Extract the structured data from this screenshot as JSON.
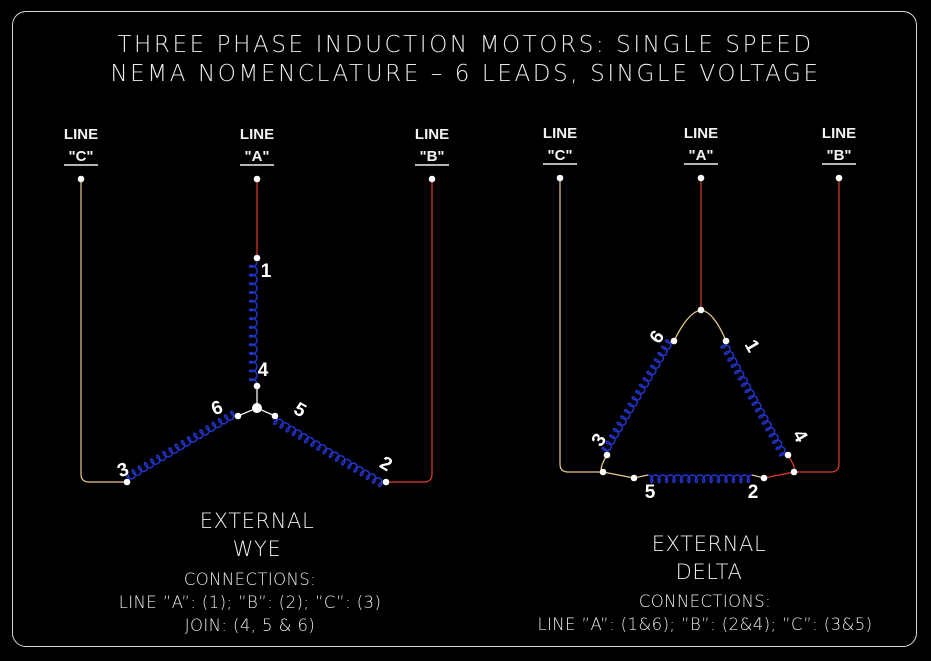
{
  "title": {
    "line1": "THREE PHASE INDUCTION MOTORS: SINGLE SPEED",
    "line2": "NEMA NOMENCLATURE – 6 LEADS, SINGLE VOLTAGE"
  },
  "colors": {
    "background": "#000000",
    "line_a": "#e23a2a",
    "line_b": "#e23a2a",
    "line_c": "#e8c98a",
    "coil": "#2233c8",
    "text": "#ececec"
  },
  "wye": {
    "lines": [
      {
        "name": "LINE",
        "tag": "\"C\""
      },
      {
        "name": "LINE",
        "tag": "\"A\""
      },
      {
        "name": "LINE",
        "tag": "\"B\""
      }
    ],
    "terminals": [
      "1",
      "4",
      "6",
      "5",
      "3",
      "2"
    ],
    "label_line1": "EXTERNAL",
    "label_line2": "WYE",
    "connections_heading": "CONNECTIONS:",
    "connections_line": "LINE ”A”: (1); ”B”: (2); ”C”: (3)",
    "join_line": "JOIN: (4, 5 & 6)"
  },
  "delta": {
    "lines": [
      {
        "name": "LINE",
        "tag": "\"C\""
      },
      {
        "name": "LINE",
        "tag": "\"A\""
      },
      {
        "name": "LINE",
        "tag": "\"B\""
      }
    ],
    "terminals": [
      "6",
      "1",
      "3",
      "4",
      "5",
      "2"
    ],
    "label_line1": "EXTERNAL",
    "label_line2": "DELTA",
    "connections_heading": "CONNECTIONS:",
    "connections_line": "LINE ”A”: (1&6); ”B”: (2&4); ”C”: (3&5)"
  }
}
